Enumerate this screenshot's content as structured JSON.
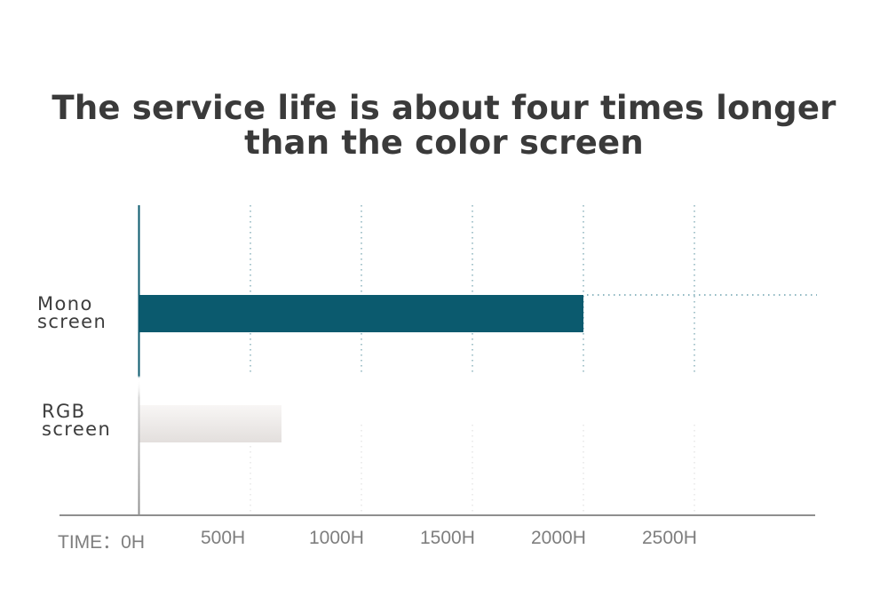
{
  "chart_data": {
    "type": "bar",
    "orientation": "horizontal",
    "title": "The service life is about four times longer than the color screen",
    "title_lines": [
      "The service life is about four times longer",
      "than the color screen"
    ],
    "categories": [
      {
        "name": "Mono screen",
        "lines": [
          "Mono",
          "screen"
        ]
      },
      {
        "name": "RGB screen",
        "lines": [
          "RGB",
          "screen"
        ]
      }
    ],
    "values": [
      2000,
      640
    ],
    "colors": [
      "#0b5a6e",
      "#ebe8e6"
    ],
    "x_ticks": [
      0,
      500,
      1000,
      1500,
      2000,
      2500
    ],
    "x_tick_labels": [
      "TIME：0H",
      "500H",
      "1000H",
      "1500H",
      "2000H",
      "2500H"
    ],
    "xlim": [
      0,
      3000
    ],
    "grid": "dotted vertical",
    "xlabel": "",
    "ylabel": ""
  }
}
